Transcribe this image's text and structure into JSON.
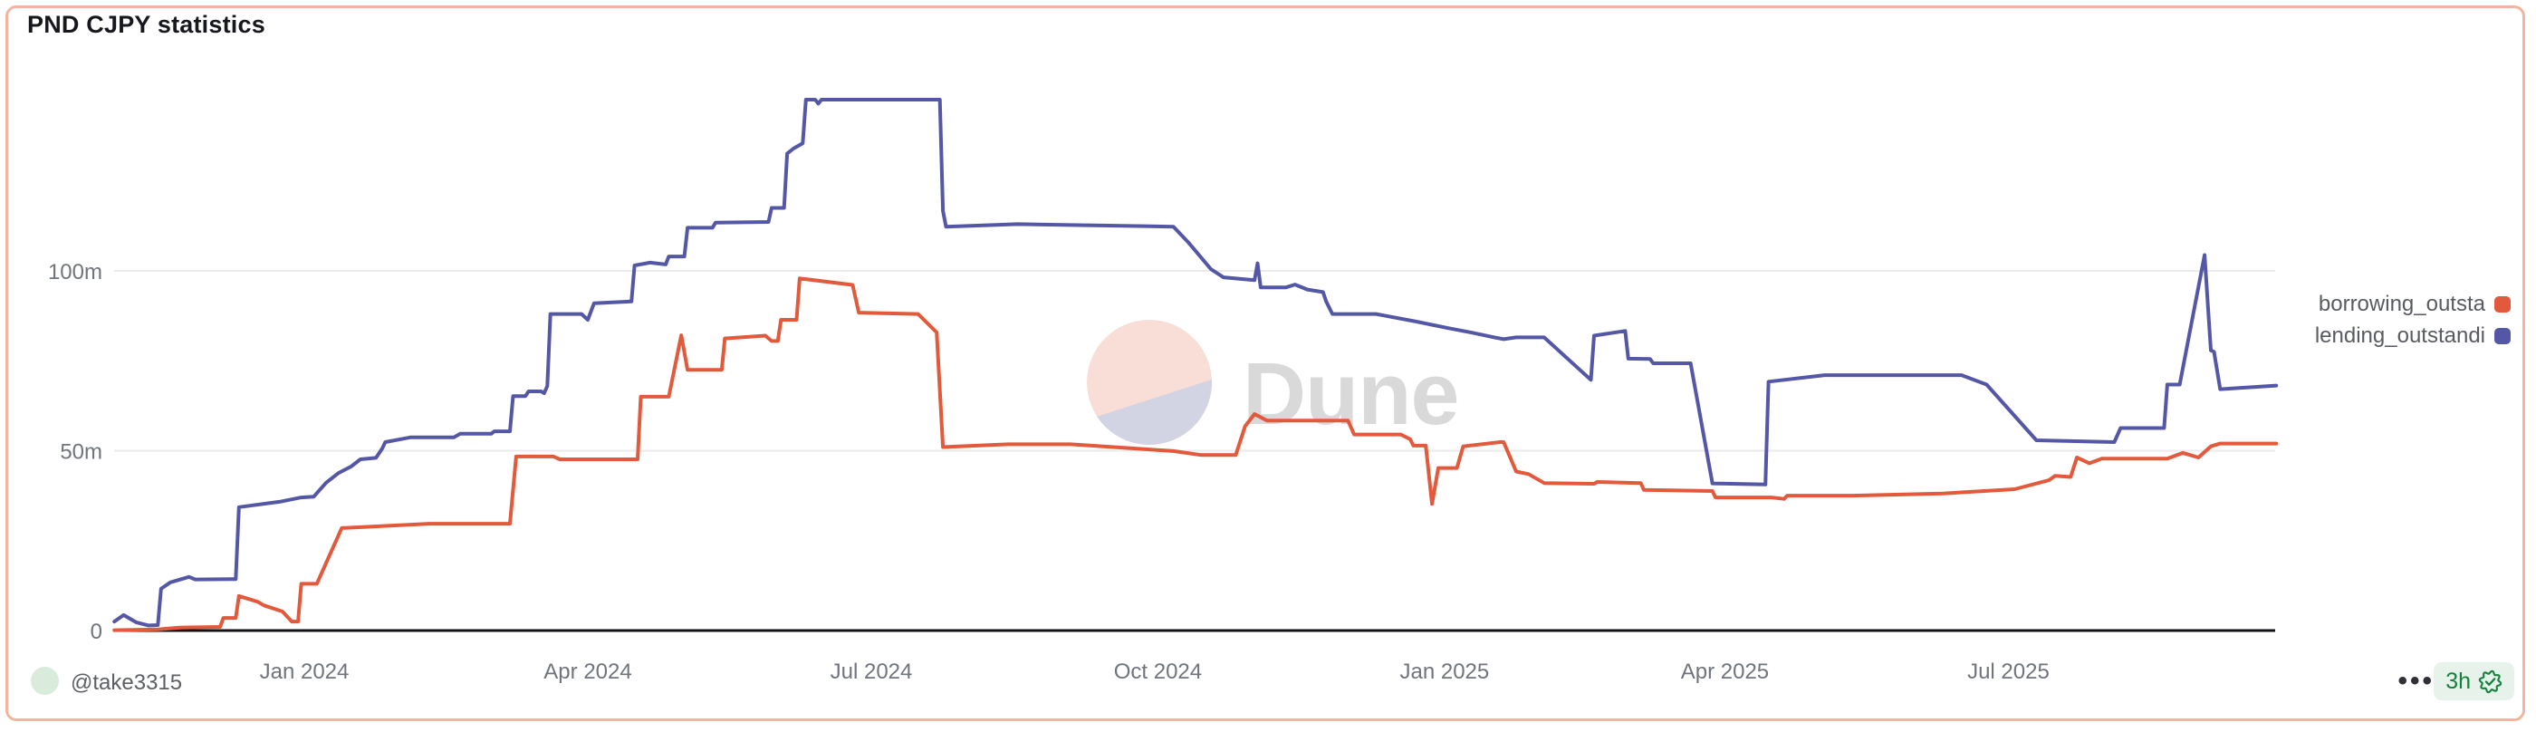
{
  "card": {
    "title": "PND CJPY statistics",
    "border_color": "#f2b49e"
  },
  "watermark": {
    "brand": "Dune",
    "text_color": "#d9d9d9",
    "circle_top_color": "#f8ded6",
    "circle_bottom_color": "#d2d3e3"
  },
  "legend": [
    {
      "label": "borrowing_outsta",
      "color": "#e2593c"
    },
    {
      "label": "lending_outstandi",
      "color": "#5457a6"
    }
  ],
  "footer": {
    "author": "@take3315",
    "menu": "•••",
    "updated_badge": {
      "text": "3h",
      "icon": "badge-check-icon",
      "bg": "#e7f3ea",
      "color": "#16813e"
    }
  },
  "chart_data": {
    "type": "line",
    "title": "PND CJPY statistics",
    "grid": true,
    "legend_position": "right",
    "unit": "m = millions",
    "colors": {
      "grid": "#ebebeb",
      "axis": "#121217",
      "tick_text": "#70747c"
    },
    "y_axis": {
      "ylim": [
        0,
        152
      ],
      "ticks": [
        {
          "label": "0",
          "value": 0
        },
        {
          "label": "50m",
          "value": 50
        },
        {
          "label": "100m",
          "value": 100
        }
      ]
    },
    "x_axis": {
      "range": [
        "2023-11-01",
        "2025-09-25"
      ],
      "ticks": [
        {
          "label": "Jan 2024",
          "date": "2024-01-01"
        },
        {
          "label": "Apr 2024",
          "date": "2024-04-01"
        },
        {
          "label": "Jul 2024",
          "date": "2024-07-01"
        },
        {
          "label": "Oct 2024",
          "date": "2024-10-01"
        },
        {
          "label": "Jan 2025",
          "date": "2025-01-01"
        },
        {
          "label": "Apr 2025",
          "date": "2025-04-01"
        },
        {
          "label": "Jul 2025",
          "date": "2025-07-01"
        }
      ]
    },
    "series": [
      {
        "label": "borrowing_outsta",
        "color": "#e2593c",
        "points": [
          [
            "2023-11-01",
            0.1
          ],
          [
            "2023-11-15",
            0.3
          ],
          [
            "2023-11-22",
            0.8
          ],
          [
            "2023-12-05",
            1.0
          ],
          [
            "2023-12-06",
            3.5
          ],
          [
            "2023-12-10",
            3.5
          ],
          [
            "2023-12-11",
            9.6
          ],
          [
            "2023-12-17",
            8.0
          ],
          [
            "2023-12-19",
            7.0
          ],
          [
            "2023-12-25",
            5.3
          ],
          [
            "2023-12-28",
            2.5
          ],
          [
            "2023-12-30",
            2.5
          ],
          [
            "2023-12-31",
            13.0
          ],
          [
            "2024-01-05",
            13.0
          ],
          [
            "2024-01-13",
            28.5
          ],
          [
            "2024-02-10",
            29.7
          ],
          [
            "2024-03-07",
            29.7
          ],
          [
            "2024-03-09",
            48.4
          ],
          [
            "2024-03-21",
            48.4
          ],
          [
            "2024-03-23",
            47.6
          ],
          [
            "2024-04-17",
            47.6
          ],
          [
            "2024-04-18",
            65.0
          ],
          [
            "2024-04-27",
            65.0
          ],
          [
            "2024-05-01",
            82.1
          ],
          [
            "2024-05-03",
            72.5
          ],
          [
            "2024-05-14",
            72.5
          ],
          [
            "2024-05-15",
            81.2
          ],
          [
            "2024-05-28",
            82.0
          ],
          [
            "2024-05-30",
            80.5
          ],
          [
            "2024-06-01",
            80.5
          ],
          [
            "2024-06-02",
            86.4
          ],
          [
            "2024-06-07",
            86.4
          ],
          [
            "2024-06-08",
            97.9
          ],
          [
            "2024-06-25",
            96.1
          ],
          [
            "2024-06-27",
            88.4
          ],
          [
            "2024-07-16",
            88.0
          ],
          [
            "2024-07-22",
            82.9
          ],
          [
            "2024-07-24",
            51.0
          ],
          [
            "2024-08-14",
            51.8
          ],
          [
            "2024-09-03",
            51.8
          ],
          [
            "2024-10-06",
            49.9
          ],
          [
            "2024-10-15",
            48.8
          ],
          [
            "2024-10-26",
            48.8
          ],
          [
            "2024-10-29",
            56.8
          ],
          [
            "2024-11-01",
            60.2
          ],
          [
            "2024-11-05",
            58.4
          ],
          [
            "2024-12-01",
            58.4
          ],
          [
            "2024-12-03",
            54.5
          ],
          [
            "2024-12-18",
            54.5
          ],
          [
            "2024-12-21",
            53.2
          ],
          [
            "2024-12-22",
            51.4
          ],
          [
            "2024-12-26",
            51.4
          ],
          [
            "2024-12-28",
            35.2
          ],
          [
            "2024-12-30",
            45.2
          ],
          [
            "2025-01-05",
            45.2
          ],
          [
            "2025-01-07",
            51.2
          ],
          [
            "2025-01-19",
            52.4
          ],
          [
            "2025-01-20",
            52.4
          ],
          [
            "2025-01-24",
            44.2
          ],
          [
            "2025-01-28",
            43.5
          ],
          [
            "2025-02-02",
            41.0
          ],
          [
            "2025-02-18",
            40.8
          ],
          [
            "2025-02-19",
            41.3
          ],
          [
            "2025-03-05",
            41.0
          ],
          [
            "2025-03-06",
            39.1
          ],
          [
            "2025-03-28",
            38.8
          ],
          [
            "2025-03-29",
            37.0
          ],
          [
            "2025-04-16",
            37.0
          ],
          [
            "2025-04-20",
            36.6
          ],
          [
            "2025-04-21",
            37.5
          ],
          [
            "2025-05-12",
            37.5
          ],
          [
            "2025-06-10",
            38.1
          ],
          [
            "2025-07-03",
            39.3
          ],
          [
            "2025-07-14",
            41.8
          ],
          [
            "2025-07-16",
            43.0
          ],
          [
            "2025-07-21",
            42.7
          ],
          [
            "2025-07-23",
            48.1
          ],
          [
            "2025-07-27",
            46.5
          ],
          [
            "2025-07-31",
            47.8
          ],
          [
            "2025-08-21",
            47.8
          ],
          [
            "2025-08-26",
            49.4
          ],
          [
            "2025-08-31",
            48.1
          ],
          [
            "2025-09-04",
            51.2
          ],
          [
            "2025-09-07",
            52.0
          ],
          [
            "2025-09-25",
            52.0
          ]
        ]
      },
      {
        "label": "lending_outstandi",
        "color": "#5457a6",
        "points": [
          [
            "2023-11-01",
            2.5
          ],
          [
            "2023-11-04",
            4.3
          ],
          [
            "2023-11-08",
            2.3
          ],
          [
            "2023-11-12",
            1.4
          ],
          [
            "2023-11-15",
            1.5
          ],
          [
            "2023-11-16",
            11.6
          ],
          [
            "2023-11-19",
            13.4
          ],
          [
            "2023-11-25",
            14.9
          ],
          [
            "2023-11-27",
            14.2
          ],
          [
            "2023-12-10",
            14.3
          ],
          [
            "2023-12-11",
            34.3
          ],
          [
            "2023-12-24",
            35.8
          ],
          [
            "2023-12-31",
            37.0
          ],
          [
            "2024-01-04",
            37.2
          ],
          [
            "2024-01-08",
            41.1
          ],
          [
            "2024-01-12",
            43.8
          ],
          [
            "2024-01-16",
            45.6
          ],
          [
            "2024-01-19",
            47.6
          ],
          [
            "2024-01-24",
            48.0
          ],
          [
            "2024-01-26",
            50.6
          ],
          [
            "2024-01-27",
            52.4
          ],
          [
            "2024-02-04",
            53.7
          ],
          [
            "2024-02-18",
            53.7
          ],
          [
            "2024-02-20",
            54.7
          ],
          [
            "2024-03-01",
            54.7
          ],
          [
            "2024-03-02",
            55.4
          ],
          [
            "2024-03-07",
            55.4
          ],
          [
            "2024-03-08",
            65.2
          ],
          [
            "2024-03-12",
            65.2
          ],
          [
            "2024-03-13",
            66.5
          ],
          [
            "2024-03-17",
            66.5
          ],
          [
            "2024-03-18",
            66.0
          ],
          [
            "2024-03-19",
            68.0
          ],
          [
            "2024-03-20",
            88.0
          ],
          [
            "2024-03-30",
            88.0
          ],
          [
            "2024-04-01",
            86.4
          ],
          [
            "2024-04-03",
            91.0
          ],
          [
            "2024-04-15",
            91.5
          ],
          [
            "2024-04-16",
            101.5
          ],
          [
            "2024-04-21",
            102.3
          ],
          [
            "2024-04-26",
            101.8
          ],
          [
            "2024-04-27",
            104.0
          ],
          [
            "2024-05-02",
            104.0
          ],
          [
            "2024-05-03",
            112.0
          ],
          [
            "2024-05-11",
            112.0
          ],
          [
            "2024-05-12",
            113.4
          ],
          [
            "2024-05-29",
            113.6
          ],
          [
            "2024-05-30",
            117.5
          ],
          [
            "2024-06-03",
            117.5
          ],
          [
            "2024-06-04",
            132.6
          ],
          [
            "2024-06-06",
            134.0
          ],
          [
            "2024-06-09",
            135.5
          ],
          [
            "2024-06-10",
            147.6
          ],
          [
            "2024-06-13",
            147.6
          ],
          [
            "2024-06-14",
            146.5
          ],
          [
            "2024-06-15",
            147.6
          ],
          [
            "2024-07-23",
            147.6
          ],
          [
            "2024-07-24",
            116.7
          ],
          [
            "2024-07-25",
            112.3
          ],
          [
            "2024-08-17",
            113.0
          ],
          [
            "2024-10-06",
            112.3
          ],
          [
            "2024-10-11",
            107.7
          ],
          [
            "2024-10-18",
            100.5
          ],
          [
            "2024-10-22",
            98.2
          ],
          [
            "2024-11-01",
            97.4
          ],
          [
            "2024-11-02",
            102.1
          ],
          [
            "2024-11-03",
            95.4
          ],
          [
            "2024-11-11",
            95.4
          ],
          [
            "2024-11-14",
            96.2
          ],
          [
            "2024-11-18",
            94.8
          ],
          [
            "2024-11-23",
            94.1
          ],
          [
            "2024-11-24",
            91.5
          ],
          [
            "2024-11-26",
            88.0
          ],
          [
            "2024-12-10",
            88.0
          ],
          [
            "2024-12-23",
            85.9
          ],
          [
            "2025-01-02",
            84.1
          ],
          [
            "2025-01-10",
            82.8
          ],
          [
            "2025-01-17",
            81.5
          ],
          [
            "2025-01-20",
            81.0
          ],
          [
            "2025-01-24",
            81.5
          ],
          [
            "2025-02-02",
            81.5
          ],
          [
            "2025-02-17",
            69.7
          ],
          [
            "2025-02-18",
            82.0
          ],
          [
            "2025-02-28",
            83.3
          ],
          [
            "2025-03-01",
            75.6
          ],
          [
            "2025-03-08",
            75.5
          ],
          [
            "2025-03-09",
            74.3
          ],
          [
            "2025-03-21",
            74.3
          ],
          [
            "2025-03-28",
            40.9
          ],
          [
            "2025-04-14",
            40.6
          ],
          [
            "2025-04-15",
            69.2
          ],
          [
            "2025-05-03",
            71.0
          ],
          [
            "2025-06-16",
            71.0
          ],
          [
            "2025-06-24",
            68.4
          ],
          [
            "2025-07-10",
            52.9
          ],
          [
            "2025-08-04",
            52.4
          ],
          [
            "2025-08-06",
            56.3
          ],
          [
            "2025-08-20",
            56.3
          ],
          [
            "2025-08-21",
            68.4
          ],
          [
            "2025-08-25",
            68.4
          ],
          [
            "2025-09-02",
            104.4
          ],
          [
            "2025-09-04",
            77.9
          ],
          [
            "2025-09-05",
            77.5
          ],
          [
            "2025-09-07",
            67.1
          ],
          [
            "2025-09-25",
            68.1
          ]
        ]
      }
    ]
  }
}
